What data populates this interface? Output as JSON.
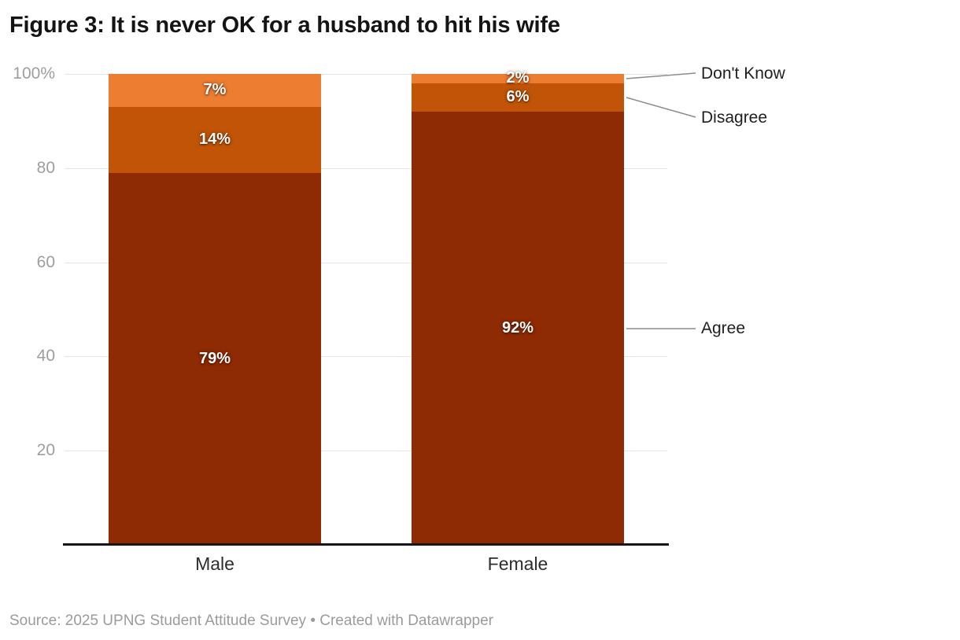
{
  "title": "Figure 3: It is never OK for a husband to hit his wife",
  "footer": "Source: 2025 UPNG Student Attitude Survey • Created with Datawrapper",
  "chart_data": {
    "type": "bar",
    "stacked": true,
    "orientation": "vertical",
    "unit": "%",
    "categories": [
      "Male",
      "Female"
    ],
    "series": [
      {
        "name": "Agree",
        "color": "#8e2a04",
        "values": [
          79,
          92
        ]
      },
      {
        "name": "Disagree",
        "color": "#c15406",
        "values": [
          14,
          6
        ]
      },
      {
        "name": "Don't Know",
        "color": "#ed7d31",
        "values": [
          7,
          2
        ]
      }
    ],
    "bar_value_labels": {
      "Male": [
        "79%",
        "14%",
        "7%"
      ],
      "Female": [
        "92%",
        "6%",
        "2%"
      ]
    },
    "ylim": [
      0,
      100
    ],
    "yticks": [
      {
        "value": 20,
        "label": "20"
      },
      {
        "value": 40,
        "label": "40"
      },
      {
        "value": 60,
        "label": "60"
      },
      {
        "value": 80,
        "label": "80"
      },
      {
        "value": 100,
        "label": "100%"
      }
    ],
    "grid": true,
    "legend_position": "right-annotations"
  }
}
